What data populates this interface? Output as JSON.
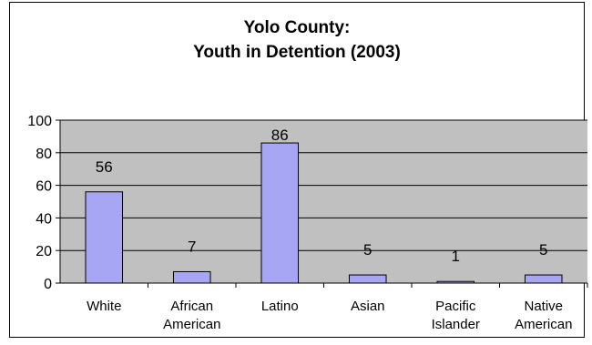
{
  "chart_data": {
    "type": "bar",
    "title_lines": [
      "Yolo County:",
      "Youth in Detention (2003)"
    ],
    "categories": [
      [
        "White"
      ],
      [
        "African",
        "American"
      ],
      [
        "Latino"
      ],
      [
        "Asian"
      ],
      [
        "Pacific",
        "Islander"
      ],
      [
        "Native",
        "American"
      ]
    ],
    "values": [
      56,
      7,
      86,
      5,
      1,
      5
    ],
    "data_labels": [
      "56",
      "7",
      "86",
      "5",
      "1",
      "5"
    ],
    "ylim": [
      0,
      100
    ],
    "yticks": [
      0,
      20,
      40,
      60,
      80,
      100
    ],
    "grid": true,
    "legend": "none",
    "colors": {
      "plot_bg": "#c0c0c0",
      "bar_fill": "#a6a6f4",
      "bar_stroke": "#000000",
      "grid": "#000000"
    }
  }
}
